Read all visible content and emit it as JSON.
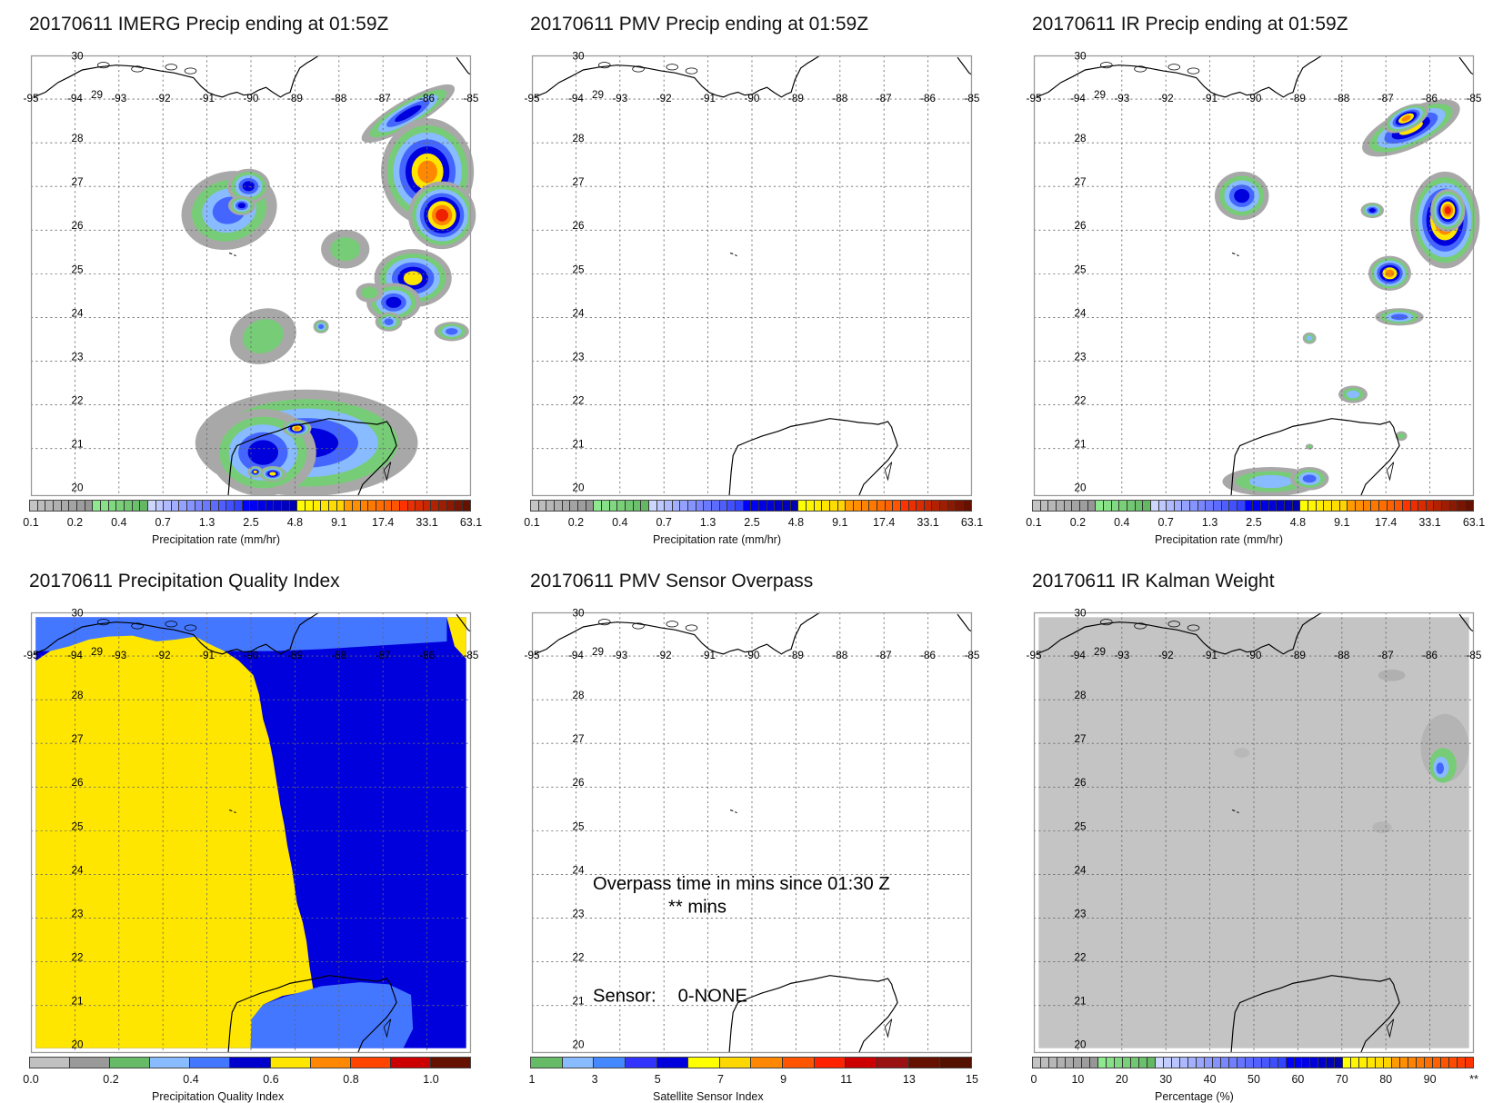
{
  "panels": [
    {
      "title": "20170611 IMERG Precip ending at 01:59Z",
      "kind": "imerg",
      "colorbar": "precip"
    },
    {
      "title": "20170611 PMV Precip ending at 01:59Z",
      "kind": "empty",
      "colorbar": "precip"
    },
    {
      "title": "20170611 IR Precip ending at 01:59Z",
      "kind": "ir",
      "colorbar": "precip"
    },
    {
      "title": "20170611 Precipitation Quality Index",
      "kind": "pqi",
      "colorbar": "pqi"
    },
    {
      "title": "20170611 PMV Sensor Overpass",
      "kind": "overpass",
      "colorbar": "sensor"
    },
    {
      "title": "20170611 IR Kalman Weight",
      "kind": "kalman",
      "colorbar": "kalman"
    }
  ],
  "map_axes": {
    "lon_labels": [
      "-95",
      "-94",
      "-93",
      "-92",
      "-91",
      "-90",
      "-89",
      "-88",
      "-87",
      "-86",
      "-85"
    ],
    "lat_labels": [
      "30",
      "29",
      "28",
      "27",
      "26",
      "25",
      "24",
      "23",
      "22",
      "21",
      "20"
    ]
  },
  "overpass": {
    "line1": "Overpass time in mins since 01:30 Z",
    "line2": "** mins",
    "sensor_label": "Sensor:",
    "sensor_value": "0-NONE"
  },
  "colorbars": {
    "precip": {
      "title": "Precipitation rate (mm/hr)",
      "ticks": [
        "0.1",
        "0.2",
        "0.4",
        "0.7",
        "1.3",
        "2.5",
        "4.8",
        "9.1",
        "17.4",
        "33.1",
        "63.1"
      ],
      "groups": [
        {
          "n": 8,
          "from": "#c4c4c4",
          "to": "#969696"
        },
        {
          "n": 7,
          "from": "#8ee88e",
          "to": "#64b864"
        },
        {
          "n": 12,
          "from": "#ccd6ff",
          "to": "#3344ff"
        },
        {
          "n": 7,
          "from": "#0000ff",
          "to": "#0000b0"
        },
        {
          "n": 6,
          "from": "#ffff00",
          "to": "#ffd400"
        },
        {
          "n": 7,
          "from": "#ff9a00",
          "to": "#ff5500"
        },
        {
          "n": 9,
          "from": "#ff3300",
          "to": "#661000"
        }
      ]
    },
    "pqi": {
      "title": "Precipitation Quality Index",
      "ticks": [
        "0.0",
        "0.2",
        "0.4",
        "0.6",
        "0.8",
        "1.0"
      ],
      "colors": [
        "#c0c0c0",
        "#999999",
        "#66bb66",
        "#88bbff",
        "#4477ff",
        "#0000cc",
        "#ffe600",
        "#ff8800",
        "#ff4400",
        "#cc0000",
        "#661100"
      ]
    },
    "sensor": {
      "title": "Satellite Sensor Index",
      "ticks": [
        "1",
        "3",
        "5",
        "7",
        "9",
        "11",
        "13",
        "15"
      ],
      "colors": [
        "#66bb66",
        "#88bbff",
        "#4488ff",
        "#3333ff",
        "#0000dd",
        "#ffff00",
        "#ffd700",
        "#ff8800",
        "#ff5500",
        "#ff2200",
        "#cc0000",
        "#991111",
        "#661100",
        "#551100"
      ]
    },
    "kalman": {
      "title": "Percentage (%)",
      "ticks": [
        "0",
        "10",
        "20",
        "30",
        "40",
        "50",
        "60",
        "70",
        "80",
        "90",
        "**"
      ],
      "groups": [
        {
          "n": 8,
          "from": "#c4c4c4",
          "to": "#969696"
        },
        {
          "n": 7,
          "from": "#8ee88e",
          "to": "#64b864"
        },
        {
          "n": 16,
          "from": "#ccd6ff",
          "to": "#3344ff"
        },
        {
          "n": 7,
          "from": "#0000ff",
          "to": "#0000b0"
        },
        {
          "n": 6,
          "from": "#ffff00",
          "to": "#ffd400"
        },
        {
          "n": 10,
          "from": "#ff9a00",
          "to": "#ff3300"
        }
      ]
    }
  }
}
